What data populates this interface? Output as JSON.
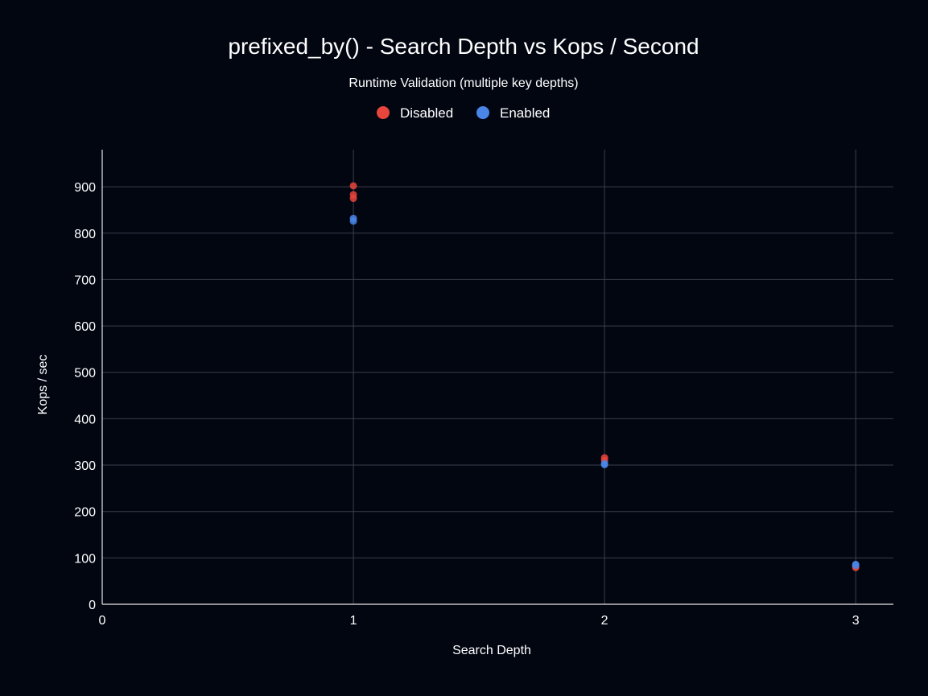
{
  "chart_data": {
    "type": "scatter",
    "title": "prefixed_by() - Search Depth vs Kops / Second",
    "subtitle": "Runtime Validation (multiple key depths)",
    "xlabel": "Search Depth",
    "ylabel": "Kops / sec",
    "xlim": [
      0,
      3.15
    ],
    "ylim": [
      0,
      980
    ],
    "xticks": [
      0,
      1,
      2,
      3
    ],
    "yticks": [
      0,
      100,
      200,
      300,
      400,
      500,
      600,
      700,
      800,
      900
    ],
    "grid": true,
    "legend_position": "top",
    "series": [
      {
        "name": "Disabled",
        "color": "#e8453c",
        "points": [
          {
            "x": 1,
            "y": 902
          },
          {
            "x": 1,
            "y": 883
          },
          {
            "x": 1,
            "y": 875
          },
          {
            "x": 2,
            "y": 316
          },
          {
            "x": 2,
            "y": 310
          },
          {
            "x": 3,
            "y": 79
          },
          {
            "x": 3,
            "y": 82
          }
        ]
      },
      {
        "name": "Enabled",
        "color": "#4a86e8",
        "points": [
          {
            "x": 1,
            "y": 832
          },
          {
            "x": 1,
            "y": 826
          },
          {
            "x": 2,
            "y": 303
          },
          {
            "x": 2,
            "y": 301
          },
          {
            "x": 3,
            "y": 86
          },
          {
            "x": 3,
            "y": 84
          }
        ]
      }
    ]
  }
}
